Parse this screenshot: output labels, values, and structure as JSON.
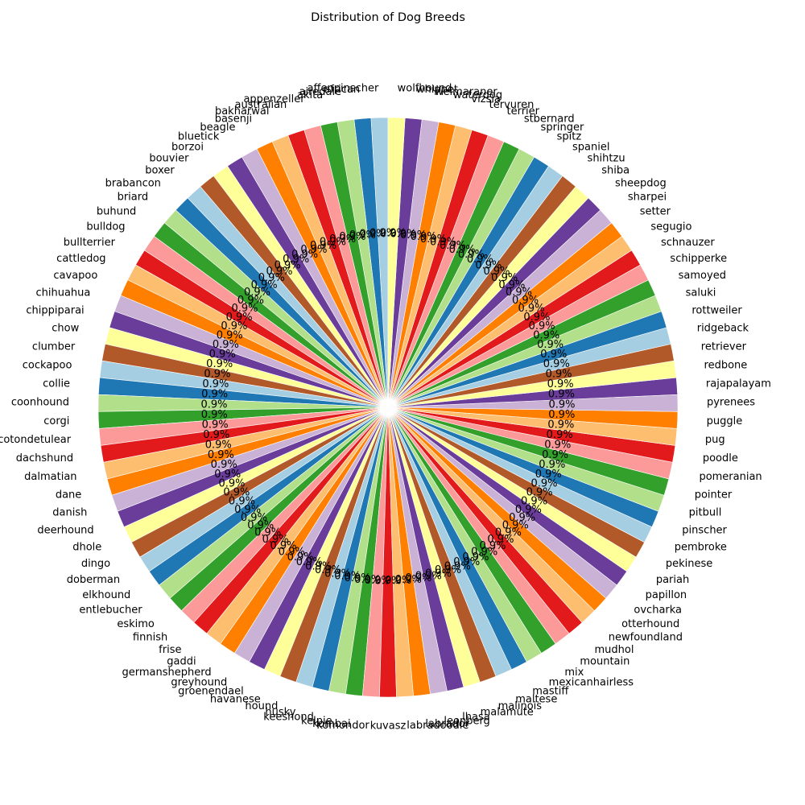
{
  "chart_data": {
    "type": "pie",
    "title": "Distribution of Dog Breeds",
    "start_angle_deg": 90,
    "direction": "counterclockwise",
    "categories": [
      "affenpinscher",
      "african",
      "airedale",
      "akita",
      "appenzeller",
      "australian",
      "bakharwal",
      "basenji",
      "beagle",
      "bluetick",
      "borzoi",
      "bouvier",
      "boxer",
      "brabancon",
      "briard",
      "buhund",
      "bulldog",
      "bullterrier",
      "cattledog",
      "cavapoo",
      "chihuahua",
      "chippiparai",
      "chow",
      "clumber",
      "cockapoo",
      "collie",
      "coonhound",
      "corgi",
      "cotondetulear",
      "dachshund",
      "dalmatian",
      "dane",
      "danish",
      "deerhound",
      "dhole",
      "dingo",
      "doberman",
      "elkhound",
      "entlebucher",
      "eskimo",
      "finnish",
      "frise",
      "gaddi",
      "germanshepherd",
      "greyhound",
      "groenendael",
      "havanese",
      "hound",
      "husky",
      "keeshond",
      "kelpie",
      "kombai",
      "komondor",
      "kuvasz",
      "labradoodle",
      "labrador",
      "leonberg",
      "lhasa",
      "malamute",
      "malinois",
      "maltese",
      "mastiff",
      "mexicanhairless",
      "mix",
      "mountain",
      "mudhol",
      "newfoundland",
      "otterhound",
      "ovcharka",
      "papillon",
      "pariah",
      "pekinese",
      "pembroke",
      "pinscher",
      "pitbull",
      "pointer",
      "pomeranian",
      "poodle",
      "pug",
      "puggle",
      "pyrenees",
      "rajapalayam",
      "redbone",
      "retriever",
      "ridgeback",
      "rottweiler",
      "saluki",
      "samoyed",
      "schipperke",
      "schnauzer",
      "segugio",
      "setter",
      "sharpei",
      "sheepdog",
      "shiba",
      "shihtzu",
      "spaniel",
      "spitz",
      "springer",
      "stbernard",
      "terrier",
      "tervuren",
      "vizsla",
      "waterdog",
      "weimaraner",
      "whippet",
      "wolfhound"
    ],
    "values": [
      1,
      1,
      1,
      1,
      1,
      1,
      1,
      1,
      1,
      1,
      1,
      1,
      1,
      1,
      1,
      1,
      1,
      1,
      1,
      1,
      1,
      1,
      1,
      1,
      1,
      1,
      1,
      1,
      1,
      1,
      1,
      1,
      1,
      1,
      1,
      1,
      1,
      1,
      1,
      1,
      1,
      1,
      1,
      1,
      1,
      1,
      1,
      1,
      1,
      1,
      1,
      1,
      1,
      1,
      1,
      1,
      1,
      1,
      1,
      1,
      1,
      1,
      1,
      1,
      1,
      1,
      1,
      1,
      1,
      1,
      1,
      1,
      1,
      1,
      1,
      1,
      1,
      1,
      1,
      1,
      1,
      1,
      1,
      1,
      1,
      1,
      1,
      1,
      1,
      1,
      1,
      1,
      1,
      1,
      1,
      1,
      1,
      1,
      1,
      1,
      1,
      1,
      1,
      1,
      1,
      1,
      1
    ],
    "percent_labels": [
      "0.9%",
      "0.9%",
      "0.9%",
      "0.9%",
      "0.9%",
      "0.9%",
      "0.9%",
      "0.9%",
      "0.9%",
      "0.9%",
      "0.9%",
      "0.9%",
      "0.9%",
      "0.9%",
      "0.9%",
      "0.9%",
      "0.9%",
      "0.9%",
      "0.9%",
      "0.9%",
      "0.9%",
      "0.9%",
      "0.9%",
      "0.9%",
      "0.9%",
      "0.9%",
      "0.9%",
      "0.9%",
      "0.9%",
      "0.9%",
      "0.9%",
      "0.9%",
      "0.9%",
      "0.9%",
      "0.9%",
      "0.9%",
      "0.9%",
      "0.9%",
      "0.9%",
      "0.9%",
      "0.9%",
      "0.9%",
      "0.9%",
      "0.9%",
      "0.9%",
      "0.9%",
      "0.9%",
      "0.9%",
      "0.9%",
      "0.9%",
      "0.9%",
      "0.9%",
      "0.9%",
      "0.9%",
      "0.9%",
      "0.9%",
      "0.9%",
      "0.9%",
      "0.9%",
      "0.9%",
      "0.9%",
      "0.9%",
      "0.9%",
      "0.9%",
      "0.9%",
      "0.9%",
      "0.9%",
      "0.9%",
      "0.9%",
      "0.9%",
      "0.9%",
      "0.9%",
      "0.9%",
      "0.9%",
      "0.9%",
      "0.9%",
      "0.9%",
      "0.9%",
      "0.9%",
      "0.9%",
      "0.9%",
      "0.9%",
      "0.9%",
      "0.9%",
      "0.9%",
      "0.9%",
      "0.9%",
      "0.9%",
      "0.9%",
      "0.9%",
      "0.9%",
      "0.9%",
      "0.9%",
      "0.9%",
      "0.9%",
      "0.9%",
      "0.9%",
      "0.9%",
      "0.9%",
      "0.9%",
      "0.9%",
      "0.9%",
      "0.9%",
      "0.9%",
      "0.9%",
      "0.9%",
      "0.9%"
    ],
    "palette": [
      "#a6cee3",
      "#1f78b4",
      "#b2df8a",
      "#33a02c",
      "#fb9a99",
      "#e31a1c",
      "#fdbf6f",
      "#ff7f00",
      "#cab2d6",
      "#6a3d9a",
      "#ffff99",
      "#b15928"
    ],
    "legend": "none"
  }
}
